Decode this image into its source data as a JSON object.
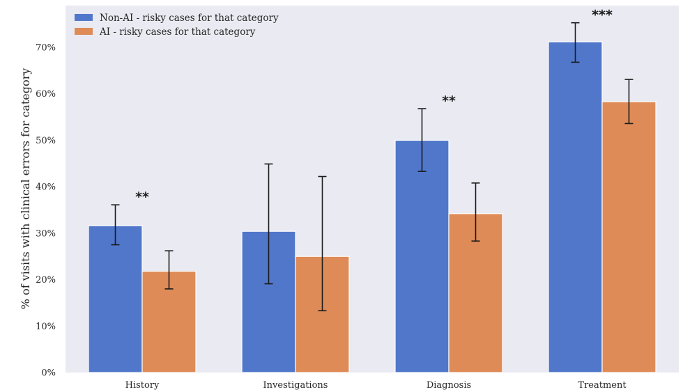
{
  "chart_data": {
    "type": "bar",
    "categories": [
      "History",
      "Investigations",
      "Diagnosis",
      "Treatment"
    ],
    "series": [
      {
        "name": "Non-AI - risky cases for that category",
        "color": "#5177ca",
        "values": [
          31.6,
          30.4,
          50.0,
          71.2
        ],
        "err_low": [
          27.5,
          19.1,
          43.3,
          66.8
        ],
        "err_high": [
          36.1,
          44.9,
          56.8,
          75.3
        ]
      },
      {
        "name": "AI - risky cases for that category",
        "color": "#de8b57",
        "values": [
          21.8,
          25.0,
          34.2,
          58.3
        ],
        "err_low": [
          18.0,
          13.3,
          28.3,
          53.6
        ],
        "err_high": [
          26.2,
          42.2,
          40.8,
          63.1
        ]
      }
    ],
    "significance": [
      {
        "category": "History",
        "label": "**"
      },
      {
        "category": "Diagnosis",
        "label": "**"
      },
      {
        "category": "Treatment",
        "label": "***"
      }
    ],
    "ylabel": "% of visits with clinical errors for category",
    "xlabel": "",
    "ylim": [
      0,
      79
    ],
    "yticks": [
      0,
      10,
      20,
      30,
      40,
      50,
      60,
      70
    ],
    "ytick_labels": [
      "0%",
      "10%",
      "20%",
      "30%",
      "40%",
      "50%",
      "60%",
      "70%"
    ],
    "grid": false,
    "legend_position": "top-left",
    "background": "#eaeaf2"
  }
}
